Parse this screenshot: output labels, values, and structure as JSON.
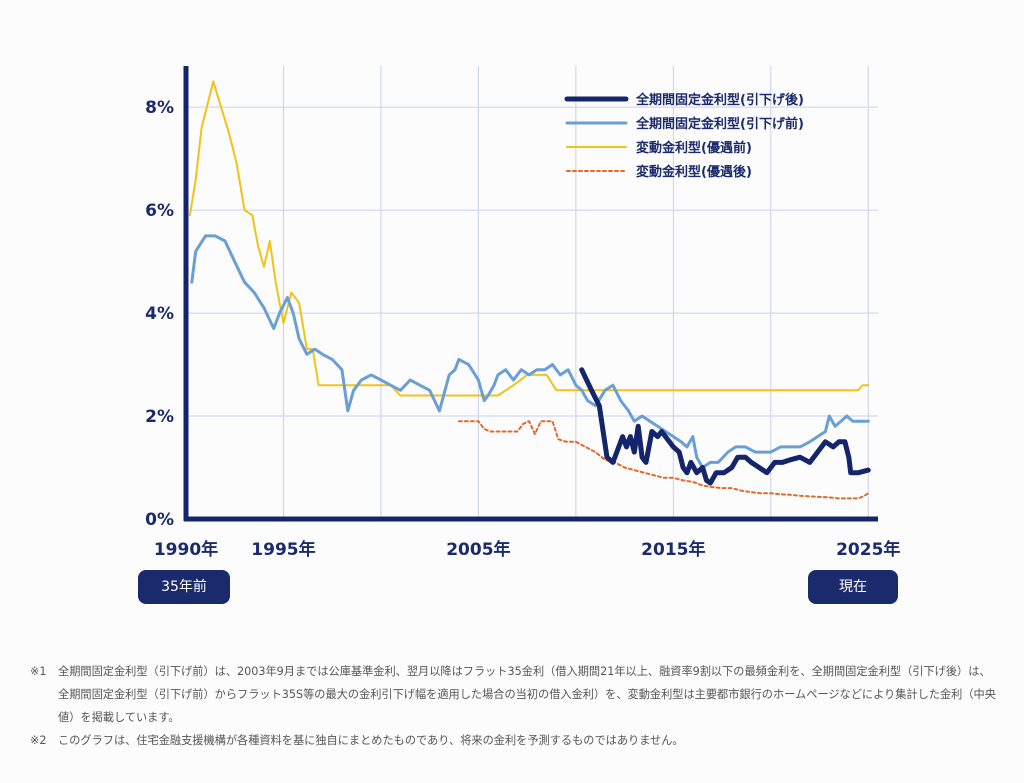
{
  "chart_data": {
    "type": "line",
    "title": "",
    "xlabel": "",
    "ylabel": "",
    "xlim": [
      1990,
      2025.5
    ],
    "ylim": [
      0,
      8.8
    ],
    "grid": true,
    "legend_position": "top-right",
    "x_ticks": [
      {
        "value": 1990,
        "label": "1990年"
      },
      {
        "value": 1995,
        "label": "1995年"
      },
      {
        "value": 2005,
        "label": "2005年"
      },
      {
        "value": 2015,
        "label": "2015年"
      },
      {
        "value": 2025,
        "label": "2025年"
      }
    ],
    "y_ticks": [
      {
        "value": 0,
        "label": "0%"
      },
      {
        "value": 2,
        "label": "2%"
      },
      {
        "value": 4,
        "label": "4%"
      },
      {
        "value": 6,
        "label": "6%"
      },
      {
        "value": 8,
        "label": "8%"
      }
    ],
    "series": [
      {
        "name": "全期間固定金利型(引下げ後)",
        "color": "#15256b",
        "style": "thick",
        "points": [
          [
            2010.3,
            2.9
          ],
          [
            2010.8,
            2.5
          ],
          [
            2011.2,
            2.2
          ],
          [
            2011.6,
            1.2
          ],
          [
            2011.9,
            1.1
          ],
          [
            2012.1,
            1.3
          ],
          [
            2012.4,
            1.6
          ],
          [
            2012.6,
            1.4
          ],
          [
            2012.8,
            1.6
          ],
          [
            2013.0,
            1.3
          ],
          [
            2013.2,
            1.8
          ],
          [
            2013.4,
            1.2
          ],
          [
            2013.6,
            1.1
          ],
          [
            2013.9,
            1.7
          ],
          [
            2014.2,
            1.6
          ],
          [
            2014.4,
            1.7
          ],
          [
            2014.6,
            1.6
          ],
          [
            2014.8,
            1.5
          ],
          [
            2015.0,
            1.4
          ],
          [
            2015.3,
            1.3
          ],
          [
            2015.5,
            1.0
          ],
          [
            2015.7,
            0.9
          ],
          [
            2015.9,
            1.1
          ],
          [
            2016.2,
            0.9
          ],
          [
            2016.5,
            1.0
          ],
          [
            2016.7,
            0.75
          ],
          [
            2016.9,
            0.7
          ],
          [
            2017.2,
            0.9
          ],
          [
            2017.6,
            0.9
          ],
          [
            2018.0,
            1.0
          ],
          [
            2018.3,
            1.2
          ],
          [
            2018.7,
            1.2
          ],
          [
            2019.0,
            1.1
          ],
          [
            2019.4,
            1.0
          ],
          [
            2019.8,
            0.9
          ],
          [
            2020.2,
            1.1
          ],
          [
            2020.6,
            1.1
          ],
          [
            2021.0,
            1.15
          ],
          [
            2021.5,
            1.2
          ],
          [
            2022.0,
            1.1
          ],
          [
            2022.4,
            1.3
          ],
          [
            2022.8,
            1.5
          ],
          [
            2023.2,
            1.4
          ],
          [
            2023.5,
            1.5
          ],
          [
            2023.8,
            1.5
          ],
          [
            2024.0,
            1.2
          ],
          [
            2024.1,
            0.9
          ],
          [
            2024.5,
            0.9
          ],
          [
            2025.0,
            0.95
          ]
        ]
      },
      {
        "name": "全期間固定金利型(引下げ前)",
        "color": "#6a9fd6",
        "style": "medium",
        "points": [
          [
            1990.3,
            4.6
          ],
          [
            1990.5,
            5.2
          ],
          [
            1991.0,
            5.5
          ],
          [
            1991.5,
            5.5
          ],
          [
            1992.0,
            5.4
          ],
          [
            1992.5,
            5.0
          ],
          [
            1993.0,
            4.6
          ],
          [
            1993.5,
            4.4
          ],
          [
            1994.0,
            4.1
          ],
          [
            1994.5,
            3.7
          ],
          [
            1994.8,
            4.0
          ],
          [
            1995.2,
            4.3
          ],
          [
            1995.5,
            4.0
          ],
          [
            1995.8,
            3.5
          ],
          [
            1996.2,
            3.2
          ],
          [
            1996.6,
            3.3
          ],
          [
            1997.0,
            3.2
          ],
          [
            1997.5,
            3.1
          ],
          [
            1998.0,
            2.9
          ],
          [
            1998.3,
            2.1
          ],
          [
            1998.6,
            2.5
          ],
          [
            1999.0,
            2.7
          ],
          [
            1999.5,
            2.8
          ],
          [
            2000.0,
            2.7
          ],
          [
            2000.5,
            2.6
          ],
          [
            2001.0,
            2.5
          ],
          [
            2001.5,
            2.7
          ],
          [
            2002.0,
            2.6
          ],
          [
            2002.5,
            2.5
          ],
          [
            2003.0,
            2.1
          ],
          [
            2003.5,
            2.8
          ],
          [
            2003.8,
            2.9
          ],
          [
            2004.0,
            3.1
          ],
          [
            2004.5,
            3.0
          ],
          [
            2005.0,
            2.7
          ],
          [
            2005.3,
            2.3
          ],
          [
            2005.5,
            2.4
          ],
          [
            2005.8,
            2.6
          ],
          [
            2006.0,
            2.8
          ],
          [
            2006.4,
            2.9
          ],
          [
            2006.8,
            2.7
          ],
          [
            2007.2,
            2.9
          ],
          [
            2007.6,
            2.8
          ],
          [
            2008.0,
            2.9
          ],
          [
            2008.4,
            2.9
          ],
          [
            2008.8,
            3.0
          ],
          [
            2009.2,
            2.8
          ],
          [
            2009.6,
            2.9
          ],
          [
            2010.0,
            2.6
          ],
          [
            2010.3,
            2.5
          ],
          [
            2010.6,
            2.3
          ],
          [
            2011.0,
            2.2
          ],
          [
            2011.5,
            2.5
          ],
          [
            2011.9,
            2.6
          ],
          [
            2012.3,
            2.3
          ],
          [
            2012.7,
            2.1
          ],
          [
            2013.0,
            1.9
          ],
          [
            2013.4,
            2.0
          ],
          [
            2013.8,
            1.9
          ],
          [
            2014.2,
            1.8
          ],
          [
            2014.6,
            1.7
          ],
          [
            2015.0,
            1.6
          ],
          [
            2015.4,
            1.5
          ],
          [
            2015.7,
            1.4
          ],
          [
            2016.0,
            1.6
          ],
          [
            2016.2,
            1.2
          ],
          [
            2016.5,
            1.0
          ],
          [
            2016.9,
            1.1
          ],
          [
            2017.3,
            1.1
          ],
          [
            2017.8,
            1.3
          ],
          [
            2018.2,
            1.4
          ],
          [
            2018.7,
            1.4
          ],
          [
            2019.2,
            1.3
          ],
          [
            2019.6,
            1.3
          ],
          [
            2020.0,
            1.3
          ],
          [
            2020.5,
            1.4
          ],
          [
            2021.0,
            1.4
          ],
          [
            2021.5,
            1.4
          ],
          [
            2022.0,
            1.5
          ],
          [
            2022.4,
            1.6
          ],
          [
            2022.8,
            1.7
          ],
          [
            2023.0,
            2.0
          ],
          [
            2023.3,
            1.8
          ],
          [
            2023.6,
            1.9
          ],
          [
            2023.9,
            2.0
          ],
          [
            2024.2,
            1.9
          ],
          [
            2024.6,
            1.9
          ],
          [
            2025.0,
            1.9
          ]
        ]
      },
      {
        "name": "変動金利型(優遇前)",
        "color": "#f2c21b",
        "style": "thin",
        "points": [
          [
            1990.2,
            5.9
          ],
          [
            1990.5,
            6.6
          ],
          [
            1990.8,
            7.6
          ],
          [
            1991.2,
            8.2
          ],
          [
            1991.4,
            8.5
          ],
          [
            1991.8,
            8.0
          ],
          [
            1992.2,
            7.5
          ],
          [
            1992.6,
            6.9
          ],
          [
            1993.0,
            6.0
          ],
          [
            1993.4,
            5.9
          ],
          [
            1993.7,
            5.3
          ],
          [
            1994.0,
            4.9
          ],
          [
            1994.3,
            5.4
          ],
          [
            1994.6,
            4.6
          ],
          [
            1995.0,
            3.8
          ],
          [
            1995.4,
            4.4
          ],
          [
            1995.8,
            4.2
          ],
          [
            1996.2,
            3.3
          ],
          [
            1996.5,
            3.3
          ],
          [
            1996.8,
            2.6
          ],
          [
            1997.5,
            2.6
          ],
          [
            1998.5,
            2.6
          ],
          [
            1999.5,
            2.6
          ],
          [
            2000.5,
            2.6
          ],
          [
            2001.0,
            2.4
          ],
          [
            2001.5,
            2.4
          ],
          [
            2003.0,
            2.4
          ],
          [
            2004.0,
            2.4
          ],
          [
            2005.0,
            2.4
          ],
          [
            2006.0,
            2.4
          ],
          [
            2006.8,
            2.6
          ],
          [
            2007.5,
            2.8
          ],
          [
            2008.5,
            2.8
          ],
          [
            2009.0,
            2.5
          ],
          [
            2009.5,
            2.5
          ],
          [
            2015.0,
            2.5
          ],
          [
            2020.0,
            2.5
          ],
          [
            2024.5,
            2.5
          ],
          [
            2024.7,
            2.6
          ],
          [
            2025.0,
            2.6
          ]
        ]
      },
      {
        "name": "変動金利型(優遇後)",
        "color": "#e5682d",
        "style": "dotted",
        "points": [
          [
            2004.0,
            1.9
          ],
          [
            2005.0,
            1.9
          ],
          [
            2005.3,
            1.75
          ],
          [
            2005.6,
            1.7
          ],
          [
            2006.5,
            1.7
          ],
          [
            2007.0,
            1.7
          ],
          [
            2007.3,
            1.85
          ],
          [
            2007.6,
            1.9
          ],
          [
            2007.9,
            1.65
          ],
          [
            2008.2,
            1.9
          ],
          [
            2008.8,
            1.9
          ],
          [
            2009.1,
            1.55
          ],
          [
            2009.5,
            1.5
          ],
          [
            2010.0,
            1.5
          ],
          [
            2010.5,
            1.4
          ],
          [
            2011.0,
            1.3
          ],
          [
            2011.5,
            1.15
          ],
          [
            2012.0,
            1.1
          ],
          [
            2012.5,
            1.0
          ],
          [
            2013.0,
            0.95
          ],
          [
            2013.5,
            0.9
          ],
          [
            2014.0,
            0.85
          ],
          [
            2014.5,
            0.8
          ],
          [
            2015.0,
            0.8
          ],
          [
            2015.5,
            0.75
          ],
          [
            2016.0,
            0.72
          ],
          [
            2016.5,
            0.65
          ],
          [
            2017.0,
            0.62
          ],
          [
            2017.5,
            0.6
          ],
          [
            2018.0,
            0.6
          ],
          [
            2018.5,
            0.55
          ],
          [
            2019.0,
            0.52
          ],
          [
            2019.5,
            0.5
          ],
          [
            2020.0,
            0.5
          ],
          [
            2020.5,
            0.48
          ],
          [
            2021.0,
            0.47
          ],
          [
            2021.5,
            0.45
          ],
          [
            2022.0,
            0.44
          ],
          [
            2022.5,
            0.43
          ],
          [
            2023.0,
            0.42
          ],
          [
            2023.5,
            0.4
          ],
          [
            2024.0,
            0.4
          ],
          [
            2024.5,
            0.4
          ],
          [
            2024.8,
            0.45
          ],
          [
            2025.0,
            0.5
          ]
        ]
      }
    ]
  },
  "badges": {
    "left": "35年前",
    "right": "現在"
  },
  "notes": [
    {
      "mark": "※1",
      "text": "全期間固定金利型（引下げ前）は、2003年9月までは公庫基準金利、翌月以降はフラット35金利（借入期間21年以上、融資率9割以下の最頻金利を、全期間固定金利型（引下げ後）は、全期間固定金利型（引下げ前）からフラット35S等の最大の金利引下げ幅を適用した場合の当初の借入金利）を、変動金利型は主要都市銀行のホームページなどにより集計した金利（中央値）を掲載しています。"
    },
    {
      "mark": "※2",
      "text": "このグラフは、住宅金融支援機構が各種資料を基に独自にまとめたものであり、将来の金利を予測するものではありません。"
    }
  ]
}
